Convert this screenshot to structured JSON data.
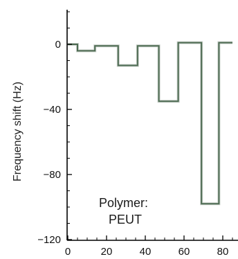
{
  "chart_data": {
    "type": "line",
    "title": "",
    "xlabel": "",
    "ylabel": "Frequency shift (Hz)",
    "xlim": [
      0,
      85
    ],
    "ylim": [
      -120,
      20
    ],
    "x_ticks": [
      0,
      20,
      40,
      60,
      80
    ],
    "x_tick_labels": [
      "0",
      "20",
      "40",
      "60",
      "80"
    ],
    "y_ticks": [
      0,
      -40,
      -80,
      -120
    ],
    "y_tick_labels": [
      "0",
      "−40",
      "−80",
      "−120"
    ],
    "x_minor_step": 5,
    "y_minor_step": 10,
    "grid": false,
    "annotation": {
      "line1": "Polymer:",
      "line2": "PEUT"
    },
    "series": [
      {
        "color": "#4d6b52",
        "x": [
          0,
          5,
          5,
          14,
          14,
          26,
          26,
          36,
          36,
          47,
          47,
          57,
          57,
          69,
          69,
          78,
          78,
          85
        ],
        "y": [
          0,
          0,
          -4,
          -4,
          -1,
          -1,
          -13,
          -13,
          -1,
          -1,
          -35,
          -35,
          1,
          1,
          -98,
          -98,
          1,
          1
        ]
      }
    ]
  }
}
